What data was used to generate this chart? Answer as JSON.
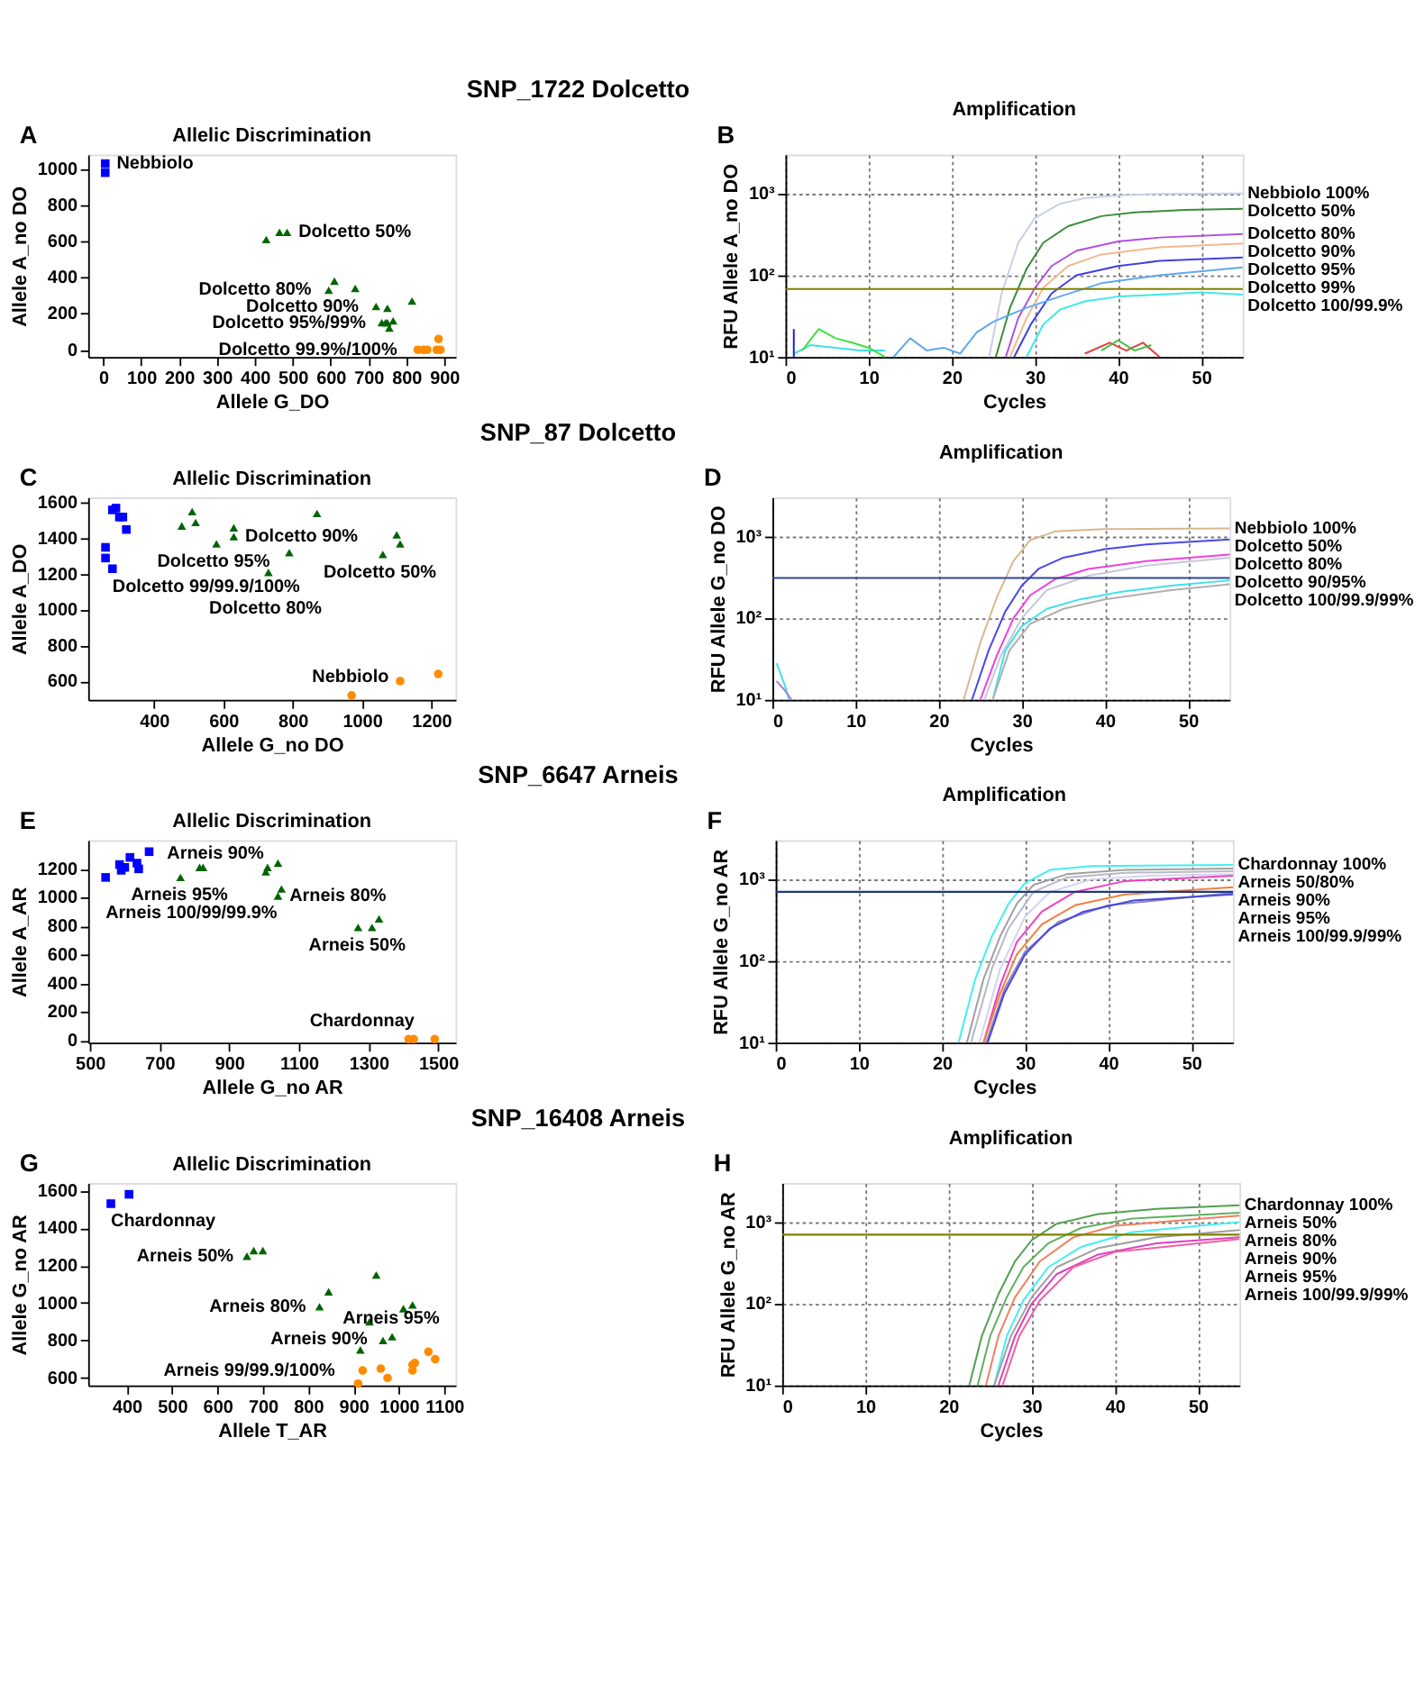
{
  "chart_data": [
    {
      "type": "scatter",
      "title": "Allelic Discrimination",
      "xlabel": "Allele G_DO",
      "ylabel": "Allele A_no DO",
      "xlim": [
        -40,
        930
      ],
      "xticks": [
        0,
        100,
        200,
        300,
        400,
        500,
        600,
        700,
        800,
        900
      ],
      "ylim": [
        -40,
        1080
      ],
      "yticks": [
        0,
        200,
        400,
        600,
        800,
        1000
      ],
      "series": [
        {
          "color": "#0000ff",
          "marker": "square",
          "x": [
            5,
            5
          ],
          "values": [
            1030,
            980
          ]
        },
        {
          "color": "#006400",
          "marker": "triangle",
          "x": [
            430,
            465,
            485,
            595,
            610,
            665,
            720,
            750,
            815,
            735,
            745,
            755,
            765,
            750
          ],
          "values": [
            610,
            650,
            650,
            330,
            380,
            340,
            240,
            230,
            270,
            150,
            150,
            120,
            160,
            150
          ]
        },
        {
          "color": "#ff8c00",
          "marker": "circle",
          "x": [
            830,
            845,
            855,
            880,
            890,
            885
          ],
          "values": [
            0,
            0,
            0,
            0,
            0,
            60
          ]
        }
      ],
      "annotations": [
        "A",
        "SNP_1722 Dolcetto",
        {
          "text": "Nebbiolo",
          "x": 5,
          "y": 1030
        },
        {
          "text": "Dolcetto 50%",
          "x": 485,
          "y": 650
        },
        {
          "text": "Dolcetto 99.9%/100%",
          "x": 830,
          "y": 0
        },
        {
          "text": "Dolcetto 95%/99%",
          "x": 735,
          "y": 150
        },
        {
          "text": "Dolcetto 90%",
          "x": 720,
          "y": 240
        },
        {
          "text": "Dolcetto 80%",
          "x": 595,
          "y": 330
        }
      ]
    },
    {
      "type": "line",
      "title": "Amplification",
      "xlabel": "Cycles",
      "ylabel": "RFU Allele A_no DO",
      "log": "y",
      "grid": true,
      "xlim": [
        0,
        55
      ],
      "xticks": [
        0,
        10,
        20,
        30,
        40,
        50
      ],
      "ylim": [
        10,
        3000
      ],
      "yticks": [
        {
          "value": 10,
          "label": "10¹"
        },
        {
          "value": 100,
          "label": "10²"
        },
        {
          "value": 1000,
          "label": "10³"
        }
      ],
      "series": [
        {
          "name": "Nebbiolo 100%",
          "color": "#c8d0e8",
          "x": [
            24.5,
            26,
            28,
            30,
            33,
            36,
            40,
            45,
            55
          ],
          "values": [
            10,
            60,
            250,
            500,
            750,
            880,
            950,
            990,
            1000
          ]
        },
        {
          "name": "Dolcetto 50%",
          "color": "#3c8c3c",
          "x": [
            25.3,
            27,
            29,
            31,
            34,
            38,
            42,
            48,
            55
          ],
          "values": [
            10,
            40,
            120,
            250,
            400,
            530,
            590,
            630,
            650
          ]
        },
        {
          "name": "Dolcetto 80%",
          "color": "#b050e0",
          "x": [
            26.5,
            28,
            30,
            32,
            35,
            40,
            45,
            55
          ],
          "values": [
            10,
            30,
            70,
            130,
            200,
            260,
            290,
            320
          ]
        },
        {
          "name": "Dolcetto 90%",
          "color": "#f4b88c",
          "x": [
            27,
            29,
            31,
            34,
            38,
            45,
            55
          ],
          "values": [
            10,
            30,
            70,
            130,
            180,
            220,
            245
          ]
        },
        {
          "name": "Dolcetto 95%",
          "color": "#4040e0",
          "x": [
            27.5,
            29.5,
            32,
            35,
            40,
            45,
            55
          ],
          "values": [
            10,
            25,
            60,
            100,
            130,
            150,
            165
          ]
        },
        {
          "name": "Dolcetto 99%",
          "color": "#60a8f0",
          "x": [
            13,
            15,
            17,
            19,
            21,
            23,
            25,
            29,
            33,
            38,
            45,
            55
          ],
          "values": [
            10,
            17,
            12,
            13,
            11,
            20,
            27,
            40,
            55,
            80,
            100,
            125
          ]
        },
        {
          "name": "Dolcetto 100/99.9%",
          "color": "#40e8e8",
          "x": [
            29,
            31,
            33,
            36,
            40,
            45,
            50,
            55
          ],
          "values": [
            10,
            25,
            38,
            48,
            55,
            58,
            62,
            58
          ]
        },
        {
          "color": "#40e0e8",
          "x": [
            1,
            3,
            6,
            9,
            12
          ],
          "values": [
            11,
            14,
            13,
            12,
            12
          ]
        },
        {
          "color": "#40e040",
          "x": [
            2,
            4,
            6,
            8,
            10,
            12
          ],
          "values": [
            12,
            22,
            17,
            15,
            13,
            10
          ]
        },
        {
          "color": "#e04040",
          "x": [
            36,
            39,
            41,
            43,
            45
          ],
          "values": [
            11,
            15,
            12,
            15,
            10
          ]
        },
        {
          "color": "#40c040",
          "x": [
            38,
            40,
            42,
            44
          ],
          "values": [
            12,
            16,
            12,
            14
          ]
        },
        {
          "color": "#2020d0",
          "x": [
            1,
            1
          ],
          "values": [
            10,
            22
          ]
        }
      ],
      "ref_lines": [
        {
          "axis": "y",
          "value": 68,
          "color": "#808000"
        }
      ],
      "annotations": [
        "B"
      ]
    },
    {
      "type": "scatter",
      "title": "Allelic Discrimination",
      "xlabel": "Allele G_no DO",
      "ylabel": "Allele A_DO",
      "xlim": [
        210,
        1270
      ],
      "xticks": [
        400,
        600,
        800,
        1000,
        1200
      ],
      "ylim": [
        495,
        1630
      ],
      "yticks": [
        600,
        800,
        1000,
        1200,
        1400,
        1600
      ],
      "series": [
        {
          "color": "#0000ff",
          "marker": "square",
          "x": [
            260,
            260,
            280,
            280,
            290,
            300,
            310,
            320
          ],
          "values": [
            1350,
            1290,
            1230,
            1560,
            1570,
            1520,
            1520,
            1450
          ]
        },
        {
          "color": "#006400",
          "marker": "triangle",
          "x": [
            480,
            510,
            520,
            580,
            630,
            630,
            730,
            790,
            870,
            1060,
            1100,
            1110
          ],
          "values": [
            1470,
            1550,
            1490,
            1370,
            1460,
            1410,
            1210,
            1320,
            1540,
            1310,
            1420,
            1370
          ]
        },
        {
          "color": "#ff8c00",
          "marker": "circle",
          "x": [
            970,
            1110,
            1220
          ],
          "values": [
            520,
            600,
            640
          ]
        }
      ],
      "annotations": [
        "C",
        "SNP_87 Dolcetto",
        {
          "text": "Dolcetto 99/99.9/100%",
          "x": 280,
          "y": 1230
        },
        {
          "text": "Dolcetto 95%",
          "x": 580,
          "y": 1370
        },
        {
          "text": "Dolcetto 90%",
          "x": 630,
          "y": 1410
        },
        {
          "text": "Dolcetto 80%",
          "x": 730,
          "y": 1210
        },
        {
          "text": "Dolcetto 50%",
          "x": 1060,
          "y": 1310
        },
        {
          "text": "Nebbiolo",
          "x": 970,
          "y": 520
        }
      ]
    },
    {
      "type": "line",
      "title": "Amplification",
      "xlabel": "Cycles",
      "ylabel": "RFU Allele G_no DO",
      "log": "y",
      "grid": true,
      "xlim": [
        0,
        55
      ],
      "xticks": [
        0,
        10,
        20,
        30,
        40,
        50
      ],
      "ylim": [
        10,
        3000
      ],
      "yticks": [
        {
          "value": 10,
          "label": "10¹"
        },
        {
          "value": 100,
          "label": "10²"
        },
        {
          "value": 1000,
          "label": "10³"
        }
      ],
      "series": [
        {
          "name": "Nebbiolo 100%",
          "color": "#d8b890",
          "x": [
            23,
            25,
            27,
            29,
            31,
            34,
            40,
            55
          ],
          "values": [
            10,
            50,
            180,
            500,
            900,
            1150,
            1230,
            1250
          ]
        },
        {
          "name": "Dolcetto 50%",
          "color": "#4848f0",
          "x": [
            24,
            26,
            28,
            30,
            32,
            35,
            40,
            45,
            55
          ],
          "values": [
            10,
            40,
            120,
            250,
            400,
            550,
            700,
            800,
            920
          ]
        },
        {
          "name": "Dolcetto 80%",
          "color": "#f040e0",
          "x": [
            25,
            27,
            29,
            31,
            34,
            38,
            45,
            55
          ],
          "values": [
            10,
            35,
            100,
            190,
            300,
            400,
            500,
            600
          ]
        },
        {
          "name": "Dolcetto 90/95%",
          "color": "#c8c8d8",
          "x": [
            25.5,
            27.5,
            30,
            33,
            38,
            45,
            55
          ],
          "values": [
            10,
            35,
            100,
            220,
            330,
            440,
            550
          ]
        },
        {
          "name": "Dolcetto 100/99.9/99%",
          "color": "#40e0e8",
          "x": [
            26.5,
            28,
            30,
            33,
            37,
            42,
            48,
            55
          ],
          "values": [
            10,
            40,
            80,
            130,
            170,
            210,
            250,
            290
          ]
        },
        {
          "color": "#b0b0b0",
          "x": [
            26.5,
            28.5,
            31,
            35,
            40,
            48,
            55
          ],
          "values": [
            10,
            40,
            85,
            130,
            170,
            220,
            260
          ]
        },
        {
          "color": "#40e0e8",
          "x": [
            0.5,
            1.5,
            2
          ],
          "values": [
            28,
            15,
            10
          ]
        },
        {
          "color": "#a080e0",
          "x": [
            0.5,
            1.5,
            2.3
          ],
          "values": [
            17,
            13,
            10
          ]
        }
      ],
      "ref_lines": [
        {
          "axis": "y",
          "value": 310,
          "color": "#304890"
        }
      ],
      "annotations": [
        "D"
      ]
    },
    {
      "type": "scatter",
      "title": "Allelic Discrimination",
      "xlabel": "Allele G_no AR",
      "ylabel": "Allele A_AR",
      "xlim": [
        495,
        1550
      ],
      "xticks": [
        500,
        700,
        900,
        1100,
        1300,
        1500
      ],
      "ylim": [
        -15,
        1400
      ],
      "yticks": [
        0,
        200,
        400,
        600,
        800,
        1000,
        1200
      ],
      "series": [
        {
          "color": "#0000ff",
          "marker": "square",
          "x": [
            545,
            585,
            590,
            615,
            635,
            640,
            670,
            600
          ],
          "values": [
            1140,
            1230,
            1190,
            1280,
            1240,
            1200,
            1320,
            1210
          ]
        },
        {
          "color": "#006400",
          "marker": "triangle",
          "x": [
            760,
            815,
            825,
            1005,
            1010,
            1040,
            1040,
            1050,
            1270,
            1310,
            1330
          ],
          "values": [
            1140,
            1210,
            1210,
            1180,
            1210,
            1240,
            1010,
            1060,
            790,
            790,
            850
          ]
        },
        {
          "color": "#ff8c00",
          "marker": "circle",
          "x": [
            1415,
            1430,
            1490
          ],
          "values": [
            10,
            10,
            10
          ]
        }
      ],
      "annotations": [
        "E",
        "SNP_6647 Arneis",
        {
          "text": "Arneis 100/99/99.9%",
          "x": 545,
          "y": 1140
        },
        {
          "text": "Arneis 95%",
          "x": 760,
          "y": 1140
        },
        {
          "text": "Arneis 90%",
          "x": 1005,
          "y": 1180
        },
        {
          "text": "Arneis 80%",
          "x": 1040,
          "y": 1010
        },
        {
          "text": "Arneis 50%",
          "x": 1270,
          "y": 790
        },
        {
          "text": "Chardonnay",
          "x": 1415,
          "y": 10
        }
      ]
    },
    {
      "type": "line",
      "title": "Amplification",
      "xlabel": "Cycles",
      "ylabel": "RFU Allele G_no AR",
      "log": "y",
      "grid": true,
      "xlim": [
        0,
        55
      ],
      "xticks": [
        0,
        10,
        20,
        30,
        40,
        50
      ],
      "ylim": [
        10,
        3000
      ],
      "yticks": [
        {
          "value": 10,
          "label": "10¹"
        },
        {
          "value": 100,
          "label": "10²"
        },
        {
          "value": 1000,
          "label": "10³"
        }
      ],
      "series": [
        {
          "name": "Chardonnay 100%",
          "color": "#40f0f0",
          "x": [
            22,
            24,
            26,
            28,
            30,
            33,
            38,
            55
          ],
          "values": [
            10,
            60,
            200,
            500,
            900,
            1300,
            1450,
            1500
          ]
        },
        {
          "name": "Arneis 50/80%",
          "color": "#a0a0a0",
          "x": [
            23,
            25,
            27,
            29,
            31,
            35,
            42,
            55
          ],
          "values": [
            10,
            60,
            200,
            500,
            850,
            1150,
            1300,
            1350
          ]
        },
        {
          "color": "#b8b8c8",
          "x": [
            23.5,
            26,
            28,
            31,
            35,
            42,
            55
          ],
          "values": [
            10,
            80,
            250,
            700,
            1050,
            1200,
            1250
          ]
        },
        {
          "color": "#d0d4f0",
          "x": [
            24.5,
            27,
            30,
            33,
            38,
            45,
            55
          ],
          "values": [
            10,
            80,
            350,
            700,
            1000,
            1100,
            1150
          ]
        },
        {
          "name": "Arneis 90%",
          "color": "#f040c0",
          "x": [
            25,
            27,
            29,
            32,
            36,
            42,
            55
          ],
          "values": [
            10,
            50,
            170,
            400,
            700,
            950,
            1100
          ]
        },
        {
          "name": "Arneis 95%",
          "color": "#f08040",
          "x": [
            25,
            27,
            29,
            32,
            36,
            42,
            55
          ],
          "values": [
            10,
            40,
            120,
            280,
            480,
            650,
            800
          ]
        },
        {
          "color": "#9080c0",
          "x": [
            25.3,
            27.5,
            30,
            34,
            40,
            55
          ],
          "values": [
            10,
            45,
            130,
            300,
            480,
            680
          ]
        },
        {
          "name": "Arneis 100/99.9/99%",
          "color": "#4848e0",
          "x": [
            25.5,
            27.5,
            30,
            33,
            37,
            43,
            55
          ],
          "values": [
            10,
            40,
            120,
            250,
            400,
            550,
            650
          ]
        }
      ],
      "ref_lines": [
        {
          "axis": "y",
          "value": 700,
          "color": "#203880"
        }
      ],
      "annotations": [
        "F"
      ]
    },
    {
      "type": "scatter",
      "title": "Allelic Discrimination",
      "xlabel": "Allele T_AR",
      "ylabel": "Allele G_no AR",
      "xlim": [
        315,
        1125
      ],
      "xticks": [
        400,
        500,
        600,
        700,
        800,
        900,
        1000,
        1100
      ],
      "ylim": [
        560,
        1640
      ],
      "yticks": [
        600,
        800,
        1000,
        1200,
        1400,
        1600
      ],
      "series": [
        {
          "color": "#0000ff",
          "marker": "square",
          "x": [
            365,
            405
          ],
          "values": [
            1530,
            1580
          ]
        },
        {
          "color": "#006400",
          "marker": "triangle",
          "x": [
            665,
            680,
            700,
            825,
            845,
            950,
            935,
            1010,
            1030,
            915,
            965,
            985
          ],
          "values": [
            1250,
            1280,
            1280,
            980,
            1060,
            1150,
            900,
            970,
            990,
            750,
            800,
            820
          ]
        },
        {
          "color": "#ff8c00",
          "marker": "circle",
          "x": [
            910,
            920,
            960,
            975,
            1030,
            1030,
            1035,
            1065,
            1080
          ],
          "values": [
            570,
            640,
            650,
            600,
            640,
            670,
            680,
            740,
            700
          ]
        }
      ],
      "annotations": [
        "G",
        "SNP_16408 Arneis",
        {
          "text": "Chardonnay",
          "x": 365,
          "y": 1530
        },
        {
          "text": "Arneis 50%",
          "x": 665,
          "y": 1250
        },
        {
          "text": "Arneis 80%",
          "x": 825,
          "y": 980
        },
        {
          "text": "Arneis 90%",
          "x": 935,
          "y": 900
        },
        {
          "text": "Arneis 95%",
          "x": 985,
          "y": 820
        },
        {
          "text": "Arneis 99/99.9/100%",
          "x": 920,
          "y": 640
        }
      ]
    },
    {
      "type": "line",
      "title": "Amplification",
      "xlabel": "Cycles",
      "ylabel": "RFU Allele G_no AR",
      "log": "y",
      "grid": true,
      "xlim": [
        0,
        55
      ],
      "xticks": [
        0,
        10,
        20,
        30,
        40,
        50
      ],
      "ylim": [
        10,
        3000
      ],
      "yticks": [
        {
          "value": 10,
          "label": "10¹"
        },
        {
          "value": 100,
          "label": "10²"
        },
        {
          "value": 1000,
          "label": "10³"
        }
      ],
      "series": [
        {
          "name": "Chardonnay 100%",
          "color": "#50a050",
          "x": [
            22.5,
            24,
            26,
            28,
            30,
            33,
            38,
            45,
            55
          ],
          "values": [
            10,
            40,
            130,
            330,
            600,
            950,
            1250,
            1450,
            1600
          ]
        },
        {
          "name": "Arneis 50%",
          "color": "#60b060",
          "x": [
            23.5,
            25,
            27,
            29,
            32,
            36,
            42,
            55
          ],
          "values": [
            10,
            40,
            120,
            280,
            550,
            850,
            1100,
            1300
          ]
        },
        {
          "name": "Arneis 80%",
          "color": "#f08060",
          "x": [
            24.5,
            26,
            28,
            31,
            35,
            40,
            55
          ],
          "values": [
            10,
            40,
            120,
            330,
            650,
            900,
            1200
          ]
        },
        {
          "name": "Arneis 90%",
          "color": "#40f0f0",
          "x": [
            25.5,
            27,
            29,
            32,
            36,
            42,
            55
          ],
          "values": [
            10,
            40,
            110,
            280,
            500,
            750,
            1000
          ]
        },
        {
          "name": "Arneis 95%",
          "color": "#a0a0a0",
          "x": [
            25.5,
            27.5,
            30,
            33,
            38,
            45,
            55
          ],
          "values": [
            10,
            40,
            120,
            280,
            480,
            650,
            800
          ]
        },
        {
          "name": "Arneis 100/99.9/99%",
          "color": "#e040c0",
          "x": [
            26,
            28,
            30,
            33,
            38,
            45,
            55
          ],
          "values": [
            10,
            40,
            100,
            230,
            400,
            550,
            650
          ]
        },
        {
          "color": "#f060a0",
          "x": [
            26.5,
            28.5,
            31,
            35,
            40,
            55
          ],
          "values": [
            10,
            40,
            110,
            280,
            430,
            620
          ]
        }
      ],
      "ref_lines": [
        {
          "axis": "y",
          "value": 700,
          "color": "#808000"
        }
      ],
      "annotations": [
        "H"
      ]
    }
  ]
}
